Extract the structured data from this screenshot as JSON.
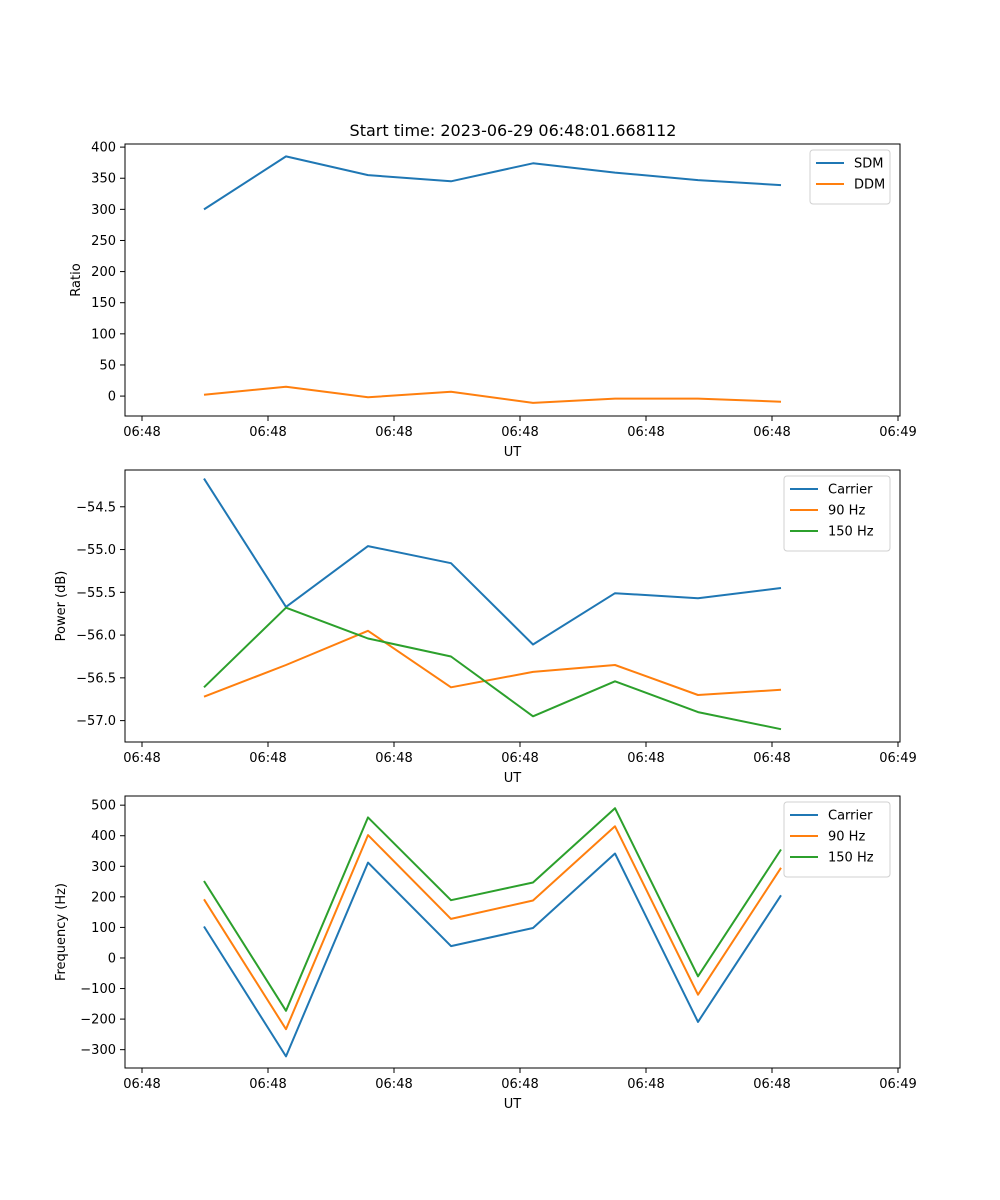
{
  "figure_title": "Start time: 2023-06-29 06:48:01.668112",
  "chart_data": [
    {
      "type": "line",
      "title": "Start time: 2023-06-29 06:48:01.668112",
      "xlabel": "UT",
      "ylabel": "Ratio",
      "x_tick_labels": [
        "06:48",
        "06:48",
        "06:48",
        "06:48",
        "06:48",
        "06:48",
        "06:49"
      ],
      "y_ticks": [
        0,
        50,
        100,
        150,
        200,
        250,
        300,
        350,
        400
      ],
      "y_tick_labels": [
        "0",
        "50",
        "100",
        "150",
        "200",
        "250",
        "300",
        "350",
        "400"
      ],
      "ylim": [
        -32,
        405
      ],
      "legend_position": "top-right",
      "series": [
        {
          "name": "SDM",
          "color": "#1f77b4",
          "values": [
            300,
            385,
            355,
            345,
            374,
            359,
            347,
            339
          ]
        },
        {
          "name": "DDM",
          "color": "#ff7f0e",
          "values": [
            2,
            15,
            -2,
            7,
            -11,
            -4,
            -4,
            -9
          ]
        }
      ]
    },
    {
      "type": "line",
      "title": "",
      "xlabel": "UT",
      "ylabel": "Power (dB)",
      "x_tick_labels": [
        "06:48",
        "06:48",
        "06:48",
        "06:48",
        "06:48",
        "06:48",
        "06:49"
      ],
      "y_ticks": [
        -54.5,
        -55.0,
        -55.5,
        -56.0,
        -56.5,
        -57.0
      ],
      "y_tick_labels": [
        "−54.5",
        "−55.0",
        "−55.5",
        "−56.0",
        "−56.5",
        "−57.0"
      ],
      "ylim": [
        -57.25,
        -54.07
      ],
      "legend_position": "top-right",
      "series": [
        {
          "name": "Carrier",
          "color": "#1f77b4",
          "values": [
            -54.17,
            -55.67,
            -54.96,
            -55.16,
            -56.11,
            -55.51,
            -55.57,
            -55.45
          ]
        },
        {
          "name": "90 Hz",
          "color": "#ff7f0e",
          "values": [
            -56.72,
            -56.35,
            -55.95,
            -56.61,
            -56.43,
            -56.35,
            -56.7,
            -56.64
          ]
        },
        {
          "name": "150 Hz",
          "color": "#2ca02c",
          "values": [
            -56.61,
            -55.68,
            -56.04,
            -56.25,
            -56.95,
            -56.54,
            -56.9,
            -57.1
          ]
        }
      ]
    },
    {
      "type": "line",
      "title": "",
      "xlabel": "UT",
      "ylabel": "Frequency (Hz)",
      "x_tick_labels": [
        "06:48",
        "06:48",
        "06:48",
        "06:48",
        "06:48",
        "06:48",
        "06:49"
      ],
      "y_ticks": [
        500,
        400,
        300,
        200,
        100,
        0,
        -100,
        -200,
        -300
      ],
      "y_tick_labels": [
        "500",
        "400",
        "300",
        "200",
        "100",
        "0",
        "−100",
        "−200",
        "−300"
      ],
      "ylim": [
        -360,
        530
      ],
      "legend_position": "top-right",
      "series": [
        {
          "name": "Carrier",
          "color": "#1f77b4",
          "values": [
            103,
            -322,
            312,
            39,
            98,
            342,
            -209,
            205
          ]
        },
        {
          "name": "90 Hz",
          "color": "#ff7f0e",
          "values": [
            192,
            -233,
            402,
            128,
            188,
            431,
            -120,
            295
          ]
        },
        {
          "name": "150 Hz",
          "color": "#2ca02c",
          "values": [
            252,
            -173,
            460,
            189,
            247,
            490,
            -60,
            355
          ]
        }
      ]
    }
  ]
}
